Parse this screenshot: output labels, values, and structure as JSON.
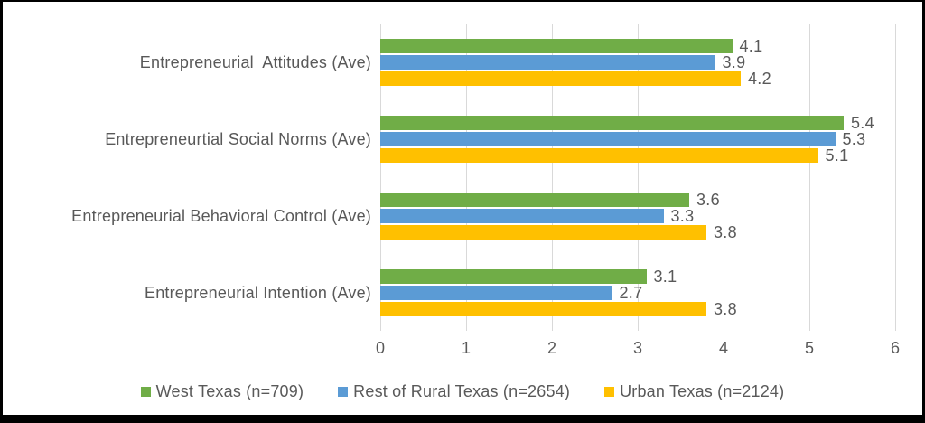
{
  "colors": {
    "series_green": "#70AD47",
    "series_blue": "#5B9BD5",
    "series_yellow": "#FFC000",
    "text": "#595959",
    "gridline": "#D9D9D9",
    "frame_border": "#000000",
    "background": "#FFFFFF"
  },
  "chart_data": {
    "type": "bar",
    "orientation": "horizontal",
    "title": "",
    "xlabel": "",
    "ylabel": "",
    "categories": [
      "Entrepreneurial  Attitudes (Ave)",
      "Entrepreneurtial Social Norms (Ave)",
      "Entrepreneurial Behavioral Control (Ave)",
      "Entrepreneurial Intention (Ave)"
    ],
    "series": [
      {
        "name": "West Texas (n=709)",
        "color": "#70AD47",
        "values": [
          4.1,
          5.4,
          3.6,
          3.1
        ]
      },
      {
        "name": "Rest of Rural Texas (n=2654)",
        "color": "#5B9BD5",
        "values": [
          3.9,
          5.3,
          3.3,
          2.7
        ]
      },
      {
        "name": "Urban Texas (n=2124)",
        "color": "#FFC000",
        "values": [
          4.2,
          5.1,
          3.8,
          3.8
        ]
      }
    ],
    "xlim": [
      0,
      6
    ],
    "x_ticks": [
      "0",
      "1",
      "2",
      "3",
      "4",
      "5",
      "6"
    ],
    "data_labels": true,
    "data_label_format": "0.0",
    "grid": true,
    "legend_position": "bottom"
  }
}
